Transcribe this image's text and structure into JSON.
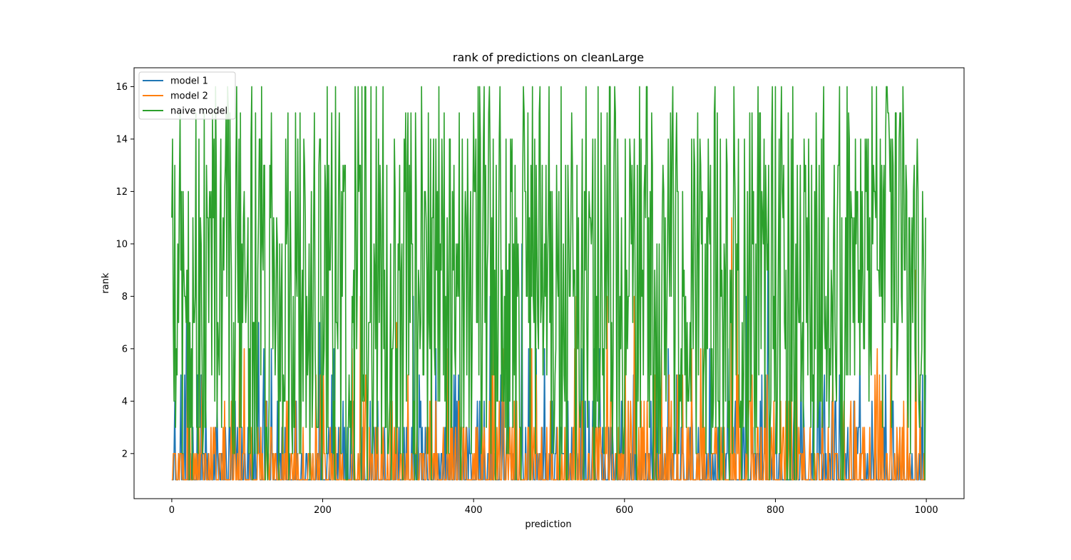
{
  "chart_data": {
    "type": "line",
    "title": "rank of predictions on cleanLarge",
    "xlabel": "prediction",
    "ylabel": "rank",
    "xlim": [
      -50,
      1050
    ],
    "ylim": [
      0.28,
      16.72
    ],
    "x_ticks": [
      0,
      200,
      400,
      600,
      800,
      1000
    ],
    "y_ticks": [
      2,
      4,
      6,
      8,
      10,
      12,
      14,
      16
    ],
    "grid": false,
    "legend_position": "top-left",
    "x_range": [
      0,
      999
    ],
    "series": [
      {
        "name": "model 1",
        "color": "#1f77b4",
        "typical_range": [
          1,
          6
        ],
        "max": 10,
        "values_sample": [
          1,
          1,
          1,
          3,
          1,
          2,
          1,
          6,
          1,
          1,
          2,
          1,
          1,
          3,
          1,
          1,
          2,
          4,
          1,
          1
        ]
      },
      {
        "name": "model 2",
        "color": "#ff7f0e",
        "typical_range": [
          1,
          5
        ],
        "max": 11,
        "values_sample": [
          1,
          1,
          1,
          2,
          1,
          8,
          1,
          4,
          1,
          1,
          2,
          1,
          3,
          1,
          1,
          2,
          1,
          1,
          4,
          1
        ]
      },
      {
        "name": "naive model",
        "color": "#2ca02c",
        "typical_range": [
          1,
          16
        ],
        "max": 16,
        "values_sample": [
          11,
          12,
          9,
          4,
          8,
          13,
          10,
          14,
          15,
          12,
          16,
          7,
          3,
          11,
          14,
          9,
          16,
          5,
          12,
          15
        ]
      }
    ]
  }
}
